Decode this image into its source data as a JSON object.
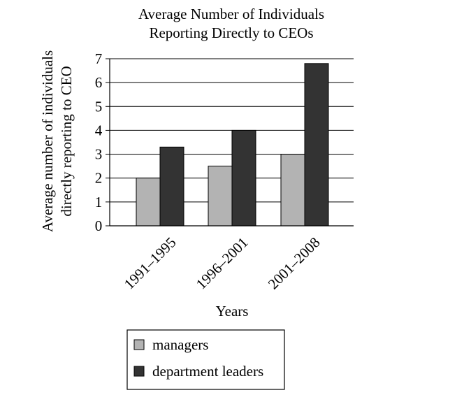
{
  "chart_data": {
    "type": "bar",
    "title_lines": [
      "Average Number of Individuals",
      "Reporting Directly to CEOs"
    ],
    "xlabel": "Years",
    "ylabel_lines": [
      "Average number of individuals",
      "directly reporting to CEO"
    ],
    "categories": [
      "1991–1995",
      "1996–2001",
      "2001–2008"
    ],
    "series": [
      {
        "name": "managers",
        "values": [
          2,
          2.5,
          3
        ],
        "color": "#b3b3b3"
      },
      {
        "name": "department leaders",
        "values": [
          3.3,
          4,
          6.8
        ],
        "color": "#333333"
      }
    ],
    "ylim": [
      0,
      7
    ],
    "yticks": [
      "0",
      "1",
      "2",
      "3",
      "4",
      "5",
      "6",
      "7"
    ],
    "grid": true,
    "legend_position": "bottom"
  }
}
